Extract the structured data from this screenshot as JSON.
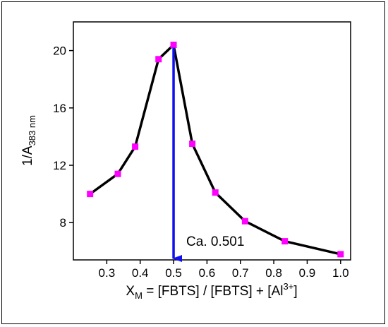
{
  "chart_data": {
    "type": "line",
    "title": "",
    "xlabel": {
      "main": "X",
      "sub": "M",
      "rest": " = [FBTS] / [FBTS] + [Al",
      "sup": "3+",
      "close": "]"
    },
    "ylabel": {
      "main": "1/A",
      "sub": "383 nm"
    },
    "xlim": [
      0.2,
      1.03
    ],
    "ylim": [
      5.4,
      22.0
    ],
    "xticks": [
      0.3,
      0.4,
      0.5,
      0.6,
      0.7,
      0.8,
      0.9,
      1.0
    ],
    "xtick_labels": [
      "0.3",
      "0.4",
      "0.5",
      "0.6",
      "0.7",
      "0.8",
      "0.9",
      "1.0"
    ],
    "yticks": [
      8,
      12,
      16,
      20
    ],
    "ytick_labels": [
      "8",
      "12",
      "16",
      "20"
    ],
    "grid": false,
    "series": [
      {
        "color": "#ff00ff",
        "line_color": "#000000",
        "marker": "square",
        "x": [
          0.25,
          0.333,
          0.385,
          0.455,
          0.5,
          0.556,
          0.625,
          0.714,
          0.833,
          1.0
        ],
        "y": [
          10.0,
          11.4,
          13.3,
          19.4,
          20.4,
          13.5,
          10.1,
          8.1,
          6.7,
          5.8
        ]
      }
    ],
    "annotation": {
      "text": "Ca. 0.501",
      "arrow_x": 0.5,
      "arrow_from_y": 20.4,
      "arrow_color": "#1010ee"
    }
  }
}
